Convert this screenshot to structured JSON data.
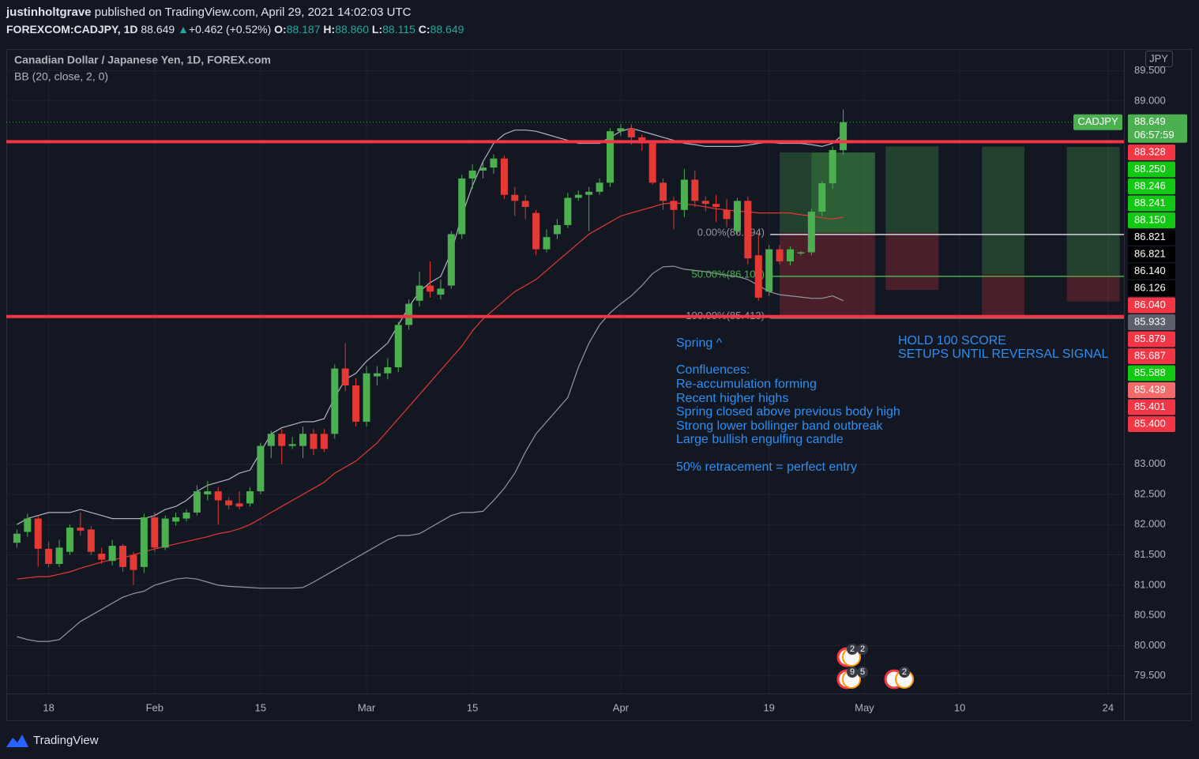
{
  "header": {
    "publisher": "justinholtgrave",
    "published": "published on TradingView.com, April 29, 2021 14:02:03 UTC",
    "symbol": "FOREXCOM:CADJPY, 1D",
    "last": "88.649",
    "arrow": "▲",
    "change": "+0.462 (+0.52%)",
    "o_label": "O:",
    "o": "88.187",
    "h_label": "H:",
    "h": "88.860",
    "l_label": "L:",
    "l": "88.115",
    "c_label": "C:",
    "c": "88.649"
  },
  "footer": {
    "brand": "TradingView"
  },
  "chart_data": {
    "type": "candlestick",
    "title": "Canadian Dollar / Japanese Yen, 1D, FOREX.com",
    "subtitle": "BB (20, close, 2, 0)",
    "currency": "JPY",
    "up_color": "#4caf50",
    "down_color": "#e53935",
    "grid": true,
    "open": [
      81.7,
      81.88,
      82.1,
      81.6,
      81.35,
      81.55,
      81.95,
      81.92,
      81.52,
      81.4,
      81.65,
      81.5,
      81.3,
      82.12,
      81.62,
      82.05,
      82.1,
      82.2,
      82.5,
      82.55,
      82.4,
      82.35,
      82.35,
      82.55,
      83.3,
      83.5,
      83.3,
      83.3,
      83.5,
      83.5,
      83.5,
      84.58,
      84.3,
      83.7,
      84.45,
      84.5,
      84.6,
      85.3,
      85.7,
      85.95,
      85.8,
      85.95,
      86.8,
      87.72,
      87.85,
      87.9,
      88.05,
      87.45,
      87.35,
      87.15,
      86.55,
      86.8,
      86.95,
      87.4,
      87.45,
      87.5,
      87.65,
      88.5,
      88.55,
      88.4,
      88.3,
      87.65,
      87.35,
      87.2,
      87.7,
      87.35,
      87.3,
      87.2,
      86.85,
      87.35,
      86.45,
      85.85,
      86.55,
      86.35,
      86.48,
      86.5,
      87.17,
      87.64,
      88.187
    ],
    "high": [
      81.92,
      82.18,
      82.15,
      81.72,
      81.75,
      82.0,
      82.2,
      81.98,
      81.62,
      81.75,
      81.68,
      81.55,
      82.18,
      82.2,
      82.15,
      82.2,
      82.25,
      82.65,
      82.72,
      82.62,
      82.45,
      82.55,
      82.62,
      83.35,
      83.55,
      83.58,
      83.45,
      83.62,
      83.58,
      83.58,
      84.65,
      85.0,
      84.42,
      84.62,
      84.62,
      84.75,
      85.35,
      85.72,
      86.18,
      86.35,
      86.05,
      86.85,
      87.78,
      87.95,
      87.98,
      88.12,
      88.1,
      87.58,
      87.45,
      87.2,
      86.88,
      87.05,
      87.48,
      87.52,
      87.58,
      87.72,
      88.55,
      88.62,
      88.62,
      88.45,
      88.35,
      87.72,
      87.42,
      87.88,
      87.85,
      87.42,
      87.45,
      87.38,
      87.4,
      87.42,
      86.8,
      86.62,
      86.62,
      86.6,
      86.52,
      87.22,
      87.68,
      88.25,
      88.86
    ],
    "low": [
      81.62,
      81.8,
      81.3,
      81.3,
      81.3,
      81.5,
      81.82,
      81.5,
      81.35,
      81.32,
      81.22,
      81.0,
      81.2,
      81.55,
      81.58,
      81.98,
      82.05,
      82.15,
      82.4,
      82.0,
      82.25,
      82.25,
      82.3,
      82.5,
      83.1,
      83.0,
      83.25,
      83.1,
      83.15,
      83.2,
      83.42,
      84.2,
      83.62,
      83.62,
      84.3,
      84.4,
      84.52,
      85.22,
      85.6,
      85.75,
      85.72,
      85.9,
      86.72,
      87.55,
      87.72,
      87.8,
      87.38,
      87.1,
      87.05,
      86.45,
      86.5,
      86.72,
      86.9,
      87.35,
      86.85,
      87.45,
      87.58,
      88.42,
      88.28,
      88.18,
      87.62,
      87.2,
      86.88,
      87.08,
      87.25,
      87.18,
      87.0,
      86.92,
      86.8,
      86.3,
      85.7,
      85.78,
      86.3,
      86.28,
      86.45,
      86.45,
      87.1,
      87.55,
      88.115
    ],
    "close": [
      81.85,
      82.1,
      81.6,
      81.35,
      81.62,
      81.95,
      81.9,
      81.55,
      81.42,
      81.65,
      81.3,
      81.25,
      82.12,
      81.62,
      82.1,
      82.12,
      82.2,
      82.55,
      82.55,
      82.4,
      82.32,
      82.3,
      82.55,
      83.3,
      83.5,
      83.3,
      83.33,
      83.5,
      83.25,
      83.25,
      84.58,
      84.3,
      83.7,
      84.5,
      84.5,
      84.6,
      85.3,
      85.65,
      85.95,
      85.85,
      85.9,
      86.8,
      87.72,
      87.85,
      87.9,
      88.05,
      87.45,
      87.35,
      87.25,
      86.55,
      86.75,
      86.95,
      87.4,
      87.45,
      87.5,
      87.65,
      88.5,
      88.55,
      88.4,
      88.3,
      87.65,
      87.35,
      87.2,
      87.7,
      87.35,
      87.3,
      87.25,
      87.05,
      87.35,
      86.4,
      85.75,
      86.55,
      86.35,
      86.55,
      86.5,
      87.17,
      87.64,
      88.19,
      88.649
    ],
    "series": [
      {
        "color": "#b2b5be",
        "values": [
          82.0,
          82.1,
          82.15,
          82.2,
          82.2,
          82.2,
          82.25,
          82.2,
          82.15,
          82.1,
          82.1,
          82.1,
          82.1,
          82.15,
          82.25,
          82.3,
          82.4,
          82.55,
          82.65,
          82.7,
          82.75,
          82.85,
          82.9,
          83.2,
          83.5,
          83.6,
          83.65,
          83.7,
          83.7,
          83.75,
          84.1,
          84.4,
          84.5,
          84.7,
          84.85,
          85.0,
          85.3,
          85.6,
          85.85,
          86.0,
          86.1,
          86.5,
          87.1,
          87.6,
          88.0,
          88.3,
          88.45,
          88.52,
          88.52,
          88.5,
          88.45,
          88.4,
          88.35,
          88.3,
          88.3,
          88.3,
          88.4,
          88.5,
          88.55,
          88.5,
          88.45,
          88.4,
          88.35,
          88.3,
          88.28,
          88.25,
          88.25,
          88.25,
          88.25,
          88.27,
          88.3,
          88.32,
          88.3,
          88.3,
          88.3,
          88.28,
          88.25,
          88.3,
          88.45
        ]
      },
      {
        "color": "#e53935",
        "values": [
          81.1,
          81.12,
          81.14,
          81.14,
          81.18,
          81.22,
          81.28,
          81.33,
          81.38,
          81.42,
          81.45,
          81.5,
          81.55,
          81.6,
          81.64,
          81.68,
          81.72,
          81.76,
          81.8,
          81.85,
          81.88,
          81.93,
          82.0,
          82.1,
          82.2,
          82.3,
          82.4,
          82.5,
          82.6,
          82.7,
          82.85,
          82.95,
          83.05,
          83.2,
          83.35,
          83.55,
          83.75,
          83.95,
          84.15,
          84.35,
          84.55,
          84.75,
          84.95,
          85.2,
          85.4,
          85.55,
          85.7,
          85.85,
          85.95,
          86.05,
          86.2,
          86.35,
          86.5,
          86.65,
          86.8,
          86.9,
          87.0,
          87.1,
          87.15,
          87.2,
          87.25,
          87.3,
          87.32,
          87.3,
          87.28,
          87.25,
          87.22,
          87.2,
          87.18,
          87.17,
          87.15,
          87.15,
          87.15,
          87.15,
          87.12,
          87.1,
          87.07,
          87.05,
          87.08
        ]
      },
      {
        "color": "#9598a1",
        "values": [
          80.15,
          80.1,
          80.07,
          80.07,
          80.1,
          80.25,
          80.4,
          80.5,
          80.6,
          80.7,
          80.8,
          80.86,
          80.9,
          81.0,
          81.05,
          81.1,
          81.12,
          81.1,
          81.05,
          81.0,
          80.98,
          80.97,
          80.96,
          80.95,
          80.95,
          80.95,
          80.95,
          80.96,
          81.05,
          81.15,
          81.25,
          81.35,
          81.45,
          81.55,
          81.65,
          81.75,
          81.82,
          81.82,
          81.85,
          81.95,
          82.05,
          82.15,
          82.2,
          82.2,
          82.22,
          82.4,
          82.6,
          82.85,
          83.2,
          83.5,
          83.7,
          83.9,
          84.1,
          84.6,
          85.0,
          85.3,
          85.5,
          85.65,
          85.78,
          85.95,
          86.15,
          86.26,
          86.27,
          86.22,
          86.2,
          86.18,
          86.15,
          86.12,
          86.1,
          86.05,
          85.95,
          85.85,
          85.8,
          85.78,
          85.76,
          85.74,
          85.74,
          85.78,
          85.7
        ]
      }
    ],
    "xlim": [
      -1,
      104.5
    ],
    "xticks": [
      {
        "value": 3,
        "label": "18"
      },
      {
        "value": 13,
        "label": "Feb"
      },
      {
        "value": 23,
        "label": "15"
      },
      {
        "value": 33,
        "label": "Mar"
      },
      {
        "value": 43,
        "label": "15"
      },
      {
        "value": 57,
        "label": "Apr"
      },
      {
        "value": 71,
        "label": "19"
      },
      {
        "value": 80,
        "label": "May"
      },
      {
        "value": 89,
        "label": "10"
      },
      {
        "value": 103,
        "label": "24"
      }
    ],
    "ylim": [
      79.21,
      89.86
    ],
    "yticks": [
      {
        "value": 89.5,
        "label": "89.500"
      },
      {
        "value": 89,
        "label": "89.000"
      },
      {
        "value": 83,
        "label": "83.000"
      },
      {
        "value": 82.5,
        "label": "82.500"
      },
      {
        "value": 82,
        "label": "82.000"
      },
      {
        "value": 81.5,
        "label": "81.500"
      },
      {
        "value": 81,
        "label": "81.000"
      },
      {
        "value": 80.5,
        "label": "80.500"
      },
      {
        "value": 80,
        "label": "80.000"
      },
      {
        "value": 79.5,
        "label": "79.500"
      }
    ],
    "hlines": [
      {
        "value": 88.328,
        "color": "#f23645"
      },
      {
        "value": 85.439,
        "color": "#f23645"
      }
    ],
    "fib": [
      {
        "value": 86.794,
        "label": "0.00%(86.794)",
        "color": "#9598a1",
        "line": "#d1d4dc"
      },
      {
        "value": 86.103,
        "label": "50.00%(86.103)",
        "color": "#4caf50",
        "line": "#4caf50"
      },
      {
        "value": 85.413,
        "label": "100.00%(85.413)",
        "color": "#9598a1",
        "line": "#9598a1"
      }
    ],
    "positions": [
      {
        "x0": 72,
        "x1": 81,
        "target": 88.15,
        "entry": 86.821,
        "stop": 85.439
      },
      {
        "x0": 75,
        "x1": 81,
        "target": 88.15,
        "entry": 86.821,
        "stop": null
      },
      {
        "x0": 82,
        "x1": 87,
        "target": 88.25,
        "entry": 86.821,
        "stop": 85.879
      },
      {
        "x0": 91.1,
        "x1": 95.1,
        "target": 88.246,
        "entry": 86.14,
        "stop": 85.401
      },
      {
        "x0": 99.1,
        "x1": 104.1,
        "target": 88.241,
        "entry": 86.126,
        "stop": 85.687
      }
    ],
    "last_price": {
      "symbol": "CADJPY",
      "value": 88.649,
      "countdown": "06:57:59",
      "color": "#4caf50"
    },
    "price_labels": [
      {
        "text": "88.328",
        "color": "#f23645"
      },
      {
        "text": "88.250",
        "color": "#12c812"
      },
      {
        "text": "88.246",
        "color": "#12c812"
      },
      {
        "text": "88.241",
        "color": "#12c812"
      },
      {
        "text": "88.150",
        "color": "#12c812"
      },
      {
        "text": "86.821",
        "color": "#000000"
      },
      {
        "text": "86.821",
        "color": "#000000"
      },
      {
        "text": "86.140",
        "color": "#000000"
      },
      {
        "text": "86.126",
        "color": "#000000"
      },
      {
        "text": "86.040",
        "color": "#f23645"
      },
      {
        "text": "85.933",
        "color": "#5d606b"
      },
      {
        "text": "85.879",
        "color": "#f23645"
      },
      {
        "text": "85.687",
        "color": "#f23645"
      },
      {
        "text": "85.588",
        "color": "#12c812"
      },
      {
        "text": "85.439",
        "color": "#f26b6b"
      },
      {
        "text": "85.401",
        "color": "#f23645"
      },
      {
        "text": "85.400",
        "color": "#f23645"
      }
    ],
    "annotations": [
      "Spring ^",
      "Confluences:",
      "Re-accumulation forming",
      "Recent higher highs",
      "Spring closed above previous body high",
      "Strong lower bollinger band outbreak",
      "Large bullish engulfing candle",
      "50% retracement = perfect entry"
    ],
    "note": [
      "HOLD 100 SCORE",
      "SETUPS UNTIL REVERSAL SIGNAL"
    ],
    "event_badges": [
      "2",
      "2",
      "9",
      "5",
      "2"
    ]
  }
}
